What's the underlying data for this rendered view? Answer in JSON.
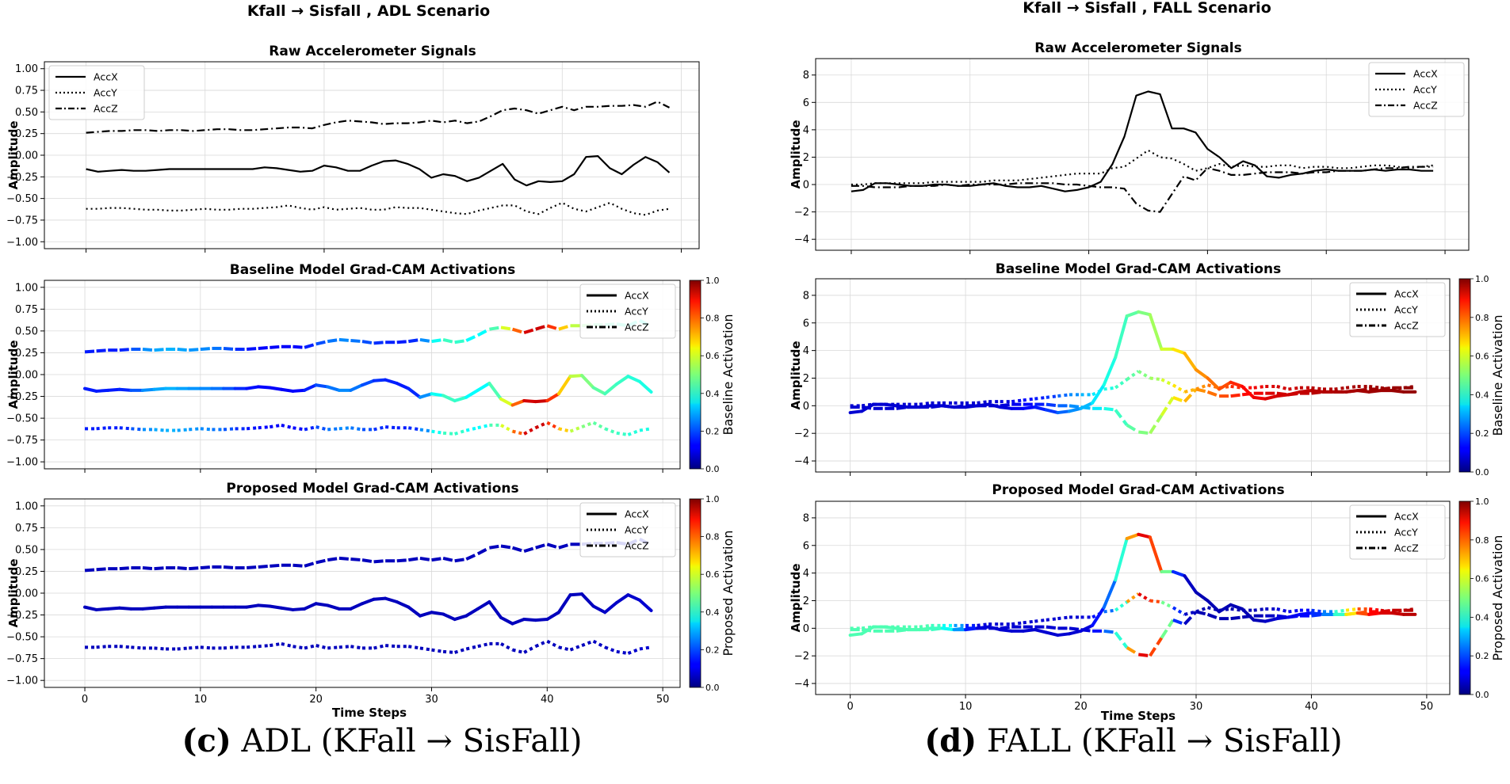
{
  "figure": {
    "captions": [
      {
        "label": "(c)",
        "text": "ADL (KFall → SisFall)"
      },
      {
        "label": "(d)",
        "text": "FALL (KFall → SisFall)"
      }
    ]
  },
  "chart_data": [
    {
      "id": "adl",
      "type": "line",
      "suptitle": "Kfall → Sisfall  , ADL Scenario",
      "xlabel": "Time Steps",
      "ylabel": "Amplitude",
      "x": [
        0,
        1,
        2,
        3,
        4,
        5,
        6,
        7,
        8,
        9,
        10,
        11,
        12,
        13,
        14,
        15,
        16,
        17,
        18,
        19,
        20,
        21,
        22,
        23,
        24,
        25,
        26,
        27,
        28,
        29,
        30,
        31,
        32,
        33,
        34,
        35,
        36,
        37,
        38,
        39,
        40,
        41,
        42,
        43,
        44,
        45,
        46,
        47,
        48,
        49
      ],
      "xlim": [
        -3.5,
        51.5
      ],
      "xticks": [
        0,
        10,
        20,
        30,
        40,
        50
      ],
      "ylim": [
        -1.08,
        1.08
      ],
      "yticks": [
        1.0,
        0.75,
        0.5,
        0.25,
        0.0,
        -0.25,
        -0.5,
        -0.75,
        -1.0
      ],
      "ytick_labels": [
        "1.00",
        "0.75",
        "0.50",
        "0.25",
        "0.00",
        "−0.25",
        "−0.50",
        "−0.75",
        "−1.00"
      ],
      "series": [
        {
          "name": "AccX",
          "style": "solid",
          "values": [
            -0.16,
            -0.19,
            -0.18,
            -0.17,
            -0.18,
            -0.18,
            -0.17,
            -0.16,
            -0.16,
            -0.16,
            -0.16,
            -0.16,
            -0.16,
            -0.16,
            -0.16,
            -0.14,
            -0.15,
            -0.17,
            -0.19,
            -0.18,
            -0.12,
            -0.14,
            -0.18,
            -0.18,
            -0.12,
            -0.07,
            -0.06,
            -0.1,
            -0.16,
            -0.26,
            -0.22,
            -0.24,
            -0.3,
            -0.26,
            -0.18,
            -0.1,
            -0.28,
            -0.35,
            -0.3,
            -0.31,
            -0.3,
            -0.22,
            -0.02,
            -0.01,
            -0.15,
            -0.22,
            -0.11,
            -0.02,
            -0.08,
            -0.2
          ]
        },
        {
          "name": "AccY",
          "style": "dotted",
          "values": [
            -0.62,
            -0.62,
            -0.61,
            -0.61,
            -0.62,
            -0.63,
            -0.63,
            -0.64,
            -0.64,
            -0.63,
            -0.62,
            -0.63,
            -0.63,
            -0.62,
            -0.62,
            -0.61,
            -0.6,
            -0.58,
            -0.61,
            -0.63,
            -0.6,
            -0.63,
            -0.62,
            -0.61,
            -0.63,
            -0.63,
            -0.6,
            -0.61,
            -0.61,
            -0.63,
            -0.65,
            -0.67,
            -0.68,
            -0.64,
            -0.61,
            -0.58,
            -0.58,
            -0.65,
            -0.68,
            -0.61,
            -0.55,
            -0.62,
            -0.65,
            -0.6,
            -0.55,
            -0.62,
            -0.67,
            -0.69,
            -0.64,
            -0.62
          ]
        },
        {
          "name": "AccZ",
          "style": "dashdot",
          "values": [
            0.26,
            0.27,
            0.28,
            0.28,
            0.29,
            0.29,
            0.28,
            0.29,
            0.29,
            0.28,
            0.29,
            0.3,
            0.3,
            0.29,
            0.29,
            0.3,
            0.31,
            0.32,
            0.32,
            0.31,
            0.35,
            0.38,
            0.4,
            0.39,
            0.38,
            0.36,
            0.37,
            0.37,
            0.38,
            0.4,
            0.38,
            0.4,
            0.37,
            0.39,
            0.45,
            0.52,
            0.54,
            0.52,
            0.48,
            0.52,
            0.56,
            0.52,
            0.56,
            0.56,
            0.57,
            0.57,
            0.58,
            0.56,
            0.62,
            0.55
          ]
        }
      ],
      "panels": [
        {
          "title": "Raw Accelerometer Signals",
          "mode": "raw",
          "legend": [
            "AccX",
            "AccY",
            "AccZ"
          ],
          "legend_loc": "upper left"
        },
        {
          "title": "Baseline Model Grad-CAM Activations",
          "mode": "cam",
          "legend": [
            "AccX",
            "AccY",
            "AccZ"
          ],
          "legend_loc": "upper right",
          "colorbar": {
            "label": "Baseline Activation",
            "range": [
              0,
              1
            ],
            "ticks": [
              "0.0",
              "0.2",
              "0.4",
              "0.6",
              "0.8",
              "1.0"
            ]
          },
          "activation": [
            0.15,
            0.15,
            0.15,
            0.15,
            0.17,
            0.25,
            0.28,
            0.3,
            0.3,
            0.27,
            0.27,
            0.25,
            0.23,
            0.18,
            0.15,
            0.13,
            0.12,
            0.12,
            0.12,
            0.13,
            0.18,
            0.22,
            0.26,
            0.26,
            0.22,
            0.18,
            0.16,
            0.15,
            0.15,
            0.18,
            0.35,
            0.42,
            0.45,
            0.4,
            0.35,
            0.4,
            0.5,
            0.68,
            0.88,
            0.95,
            0.9,
            0.75,
            0.6,
            0.52,
            0.48,
            0.45,
            0.44,
            0.42,
            0.4,
            0.4
          ]
        },
        {
          "title": "Proposed Model Grad-CAM Activations",
          "mode": "cam",
          "legend": [
            "AccX",
            "AccY",
            "AccZ"
          ],
          "legend_loc": "upper right",
          "colorbar": {
            "label": "Proposed Activation",
            "range": [
              0,
              1
            ],
            "ticks": [
              "0.0",
              "0.2",
              "0.4",
              "0.6",
              "0.8",
              "1.0"
            ]
          },
          "activation": [
            0.06,
            0.06,
            0.06,
            0.06,
            0.06,
            0.06,
            0.06,
            0.06,
            0.06,
            0.06,
            0.06,
            0.06,
            0.06,
            0.06,
            0.06,
            0.06,
            0.06,
            0.06,
            0.06,
            0.06,
            0.06,
            0.06,
            0.06,
            0.06,
            0.06,
            0.06,
            0.06,
            0.06,
            0.06,
            0.06,
            0.06,
            0.06,
            0.06,
            0.06,
            0.06,
            0.06,
            0.06,
            0.06,
            0.06,
            0.06,
            0.06,
            0.06,
            0.06,
            0.06,
            0.06,
            0.07,
            0.07,
            0.07,
            0.08,
            0.08
          ]
        }
      ]
    },
    {
      "id": "fall",
      "type": "line",
      "suptitle": "Kfall → Sisfall  , FALL Scenario",
      "xlabel": "Time Steps",
      "ylabel": "Amplitude",
      "x": [
        0,
        1,
        2,
        3,
        4,
        5,
        6,
        7,
        8,
        9,
        10,
        11,
        12,
        13,
        14,
        15,
        16,
        17,
        18,
        19,
        20,
        21,
        22,
        23,
        24,
        25,
        26,
        27,
        28,
        29,
        30,
        31,
        32,
        33,
        34,
        35,
        36,
        37,
        38,
        39,
        40,
        41,
        42,
        43,
        44,
        45,
        46,
        47,
        48,
        49
      ],
      "xlim": [
        -3,
        52
      ],
      "xticks": [
        0,
        10,
        20,
        30,
        40,
        50
      ],
      "ylim": [
        -4.8,
        9.2
      ],
      "yticks": [
        8,
        6,
        4,
        2,
        0,
        -2,
        -4
      ],
      "ytick_labels": [
        "8",
        "6",
        "4",
        "2",
        "0",
        "−2",
        "−4"
      ],
      "series": [
        {
          "name": "AccX",
          "style": "solid",
          "values": [
            -0.5,
            -0.4,
            0.1,
            0.1,
            0.0,
            -0.1,
            -0.1,
            0.0,
            0.0,
            -0.1,
            -0.1,
            0.0,
            0.1,
            -0.1,
            -0.2,
            -0.2,
            -0.1,
            -0.3,
            -0.5,
            -0.4,
            -0.2,
            0.2,
            1.5,
            3.5,
            6.5,
            6.8,
            6.6,
            4.1,
            4.1,
            3.8,
            2.6,
            2.0,
            1.2,
            1.7,
            1.4,
            0.6,
            0.5,
            0.7,
            0.8,
            1.0,
            1.1,
            1.0,
            1.0,
            1.0,
            1.1,
            1.0,
            1.1,
            1.1,
            1.0,
            1.0
          ]
        },
        {
          "name": "AccY",
          "style": "dotted",
          "values": [
            0.0,
            0.0,
            0.1,
            0.1,
            0.1,
            0.1,
            0.1,
            0.2,
            0.2,
            0.2,
            0.2,
            0.2,
            0.3,
            0.3,
            0.3,
            0.4,
            0.5,
            0.6,
            0.7,
            0.8,
            0.8,
            0.8,
            1.2,
            1.3,
            1.9,
            2.5,
            2.0,
            1.9,
            1.5,
            1.0,
            1.2,
            1.5,
            1.3,
            1.4,
            1.3,
            1.3,
            1.4,
            1.4,
            1.2,
            1.3,
            1.3,
            1.2,
            1.2,
            1.3,
            1.4,
            1.4,
            1.3,
            1.2,
            1.3,
            1.4
          ]
        },
        {
          "name": "AccZ",
          "style": "dashdot",
          "values": [
            -0.1,
            -0.1,
            -0.2,
            -0.2,
            -0.2,
            -0.1,
            -0.1,
            -0.1,
            0.0,
            -0.1,
            0.0,
            0.0,
            0.0,
            0.0,
            0.1,
            0.1,
            0.1,
            0.1,
            0.0,
            0.0,
            -0.1,
            -0.2,
            -0.2,
            -0.3,
            -1.4,
            -1.9,
            -2.0,
            -0.7,
            0.6,
            0.3,
            1.2,
            1.0,
            0.7,
            0.7,
            0.8,
            0.9,
            0.9,
            0.9,
            0.8,
            0.9,
            0.9,
            1.0,
            1.0,
            1.0,
            1.1,
            1.2,
            1.2,
            1.3,
            1.3,
            1.3
          ]
        }
      ],
      "panels": [
        {
          "title": "Raw Accelerometer Signals",
          "mode": "raw",
          "legend": [
            "AccX",
            "AccY",
            "AccZ"
          ],
          "legend_loc": "upper right"
        },
        {
          "title": "Baseline Model Grad-CAM Activations",
          "mode": "cam",
          "legend": [
            "AccX",
            "AccY",
            "AccZ"
          ],
          "legend_loc": "upper right",
          "colorbar": {
            "label": "Baseline Activation",
            "range": [
              0,
              1
            ],
            "ticks": [
              "0.0",
              "0.2",
              "0.4",
              "0.6",
              "0.8",
              "1.0"
            ]
          },
          "activation": [
            0.08,
            0.08,
            0.08,
            0.08,
            0.08,
            0.08,
            0.08,
            0.08,
            0.08,
            0.08,
            0.08,
            0.08,
            0.08,
            0.08,
            0.1,
            0.12,
            0.14,
            0.16,
            0.2,
            0.25,
            0.28,
            0.33,
            0.38,
            0.42,
            0.45,
            0.48,
            0.52,
            0.55,
            0.62,
            0.68,
            0.72,
            0.75,
            0.78,
            0.82,
            0.86,
            0.88,
            0.9,
            0.92,
            0.92,
            0.93,
            0.94,
            0.95,
            0.95,
            0.96,
            0.96,
            0.97,
            0.97,
            0.97,
            0.98,
            0.98
          ]
        },
        {
          "title": "Proposed Model Grad-CAM Activations",
          "mode": "cam",
          "legend": [
            "AccX",
            "AccY",
            "AccZ"
          ],
          "legend_loc": "upper right",
          "colorbar": {
            "label": "Proposed Activation",
            "range": [
              0,
              1
            ],
            "ticks": [
              "0.0",
              "0.2",
              "0.4",
              "0.6",
              "0.8",
              "1.0"
            ]
          },
          "activation": [
            0.45,
            0.45,
            0.45,
            0.45,
            0.45,
            0.45,
            0.45,
            0.45,
            0.42,
            0.35,
            0.2,
            0.1,
            0.08,
            0.08,
            0.08,
            0.08,
            0.08,
            0.08,
            0.08,
            0.08,
            0.08,
            0.1,
            0.18,
            0.28,
            0.55,
            0.9,
            0.9,
            0.72,
            0.25,
            0.08,
            0.05,
            0.05,
            0.05,
            0.05,
            0.05,
            0.05,
            0.06,
            0.08,
            0.1,
            0.12,
            0.14,
            0.2,
            0.3,
            0.55,
            0.75,
            0.85,
            0.9,
            0.92,
            0.94,
            0.95
          ]
        }
      ]
    }
  ]
}
